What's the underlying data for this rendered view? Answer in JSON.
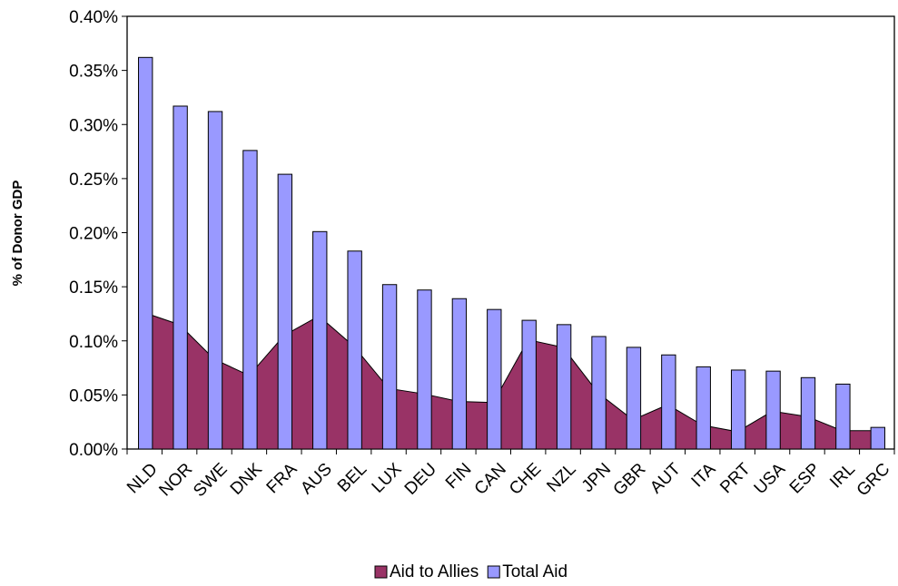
{
  "chart_data": {
    "type": "bar-area",
    "y_label": "% of Donor GDP",
    "categories": [
      "NLD",
      "NOR",
      "SWE",
      "DNK",
      "FRA",
      "AUS",
      "BEL",
      "LUX",
      "DEU",
      "FIN",
      "CAN",
      "CHE",
      "NZL",
      "JPN",
      "GBR",
      "AUT",
      "ITA",
      "PRT",
      "USA",
      "ESP",
      "IRL",
      "GRC"
    ],
    "series": [
      {
        "name": "Aid to Allies",
        "kind": "area",
        "color": "#993366",
        "values": [
          0.126,
          0.115,
          0.083,
          0.068,
          0.105,
          0.123,
          0.095,
          0.056,
          0.051,
          0.044,
          0.043,
          0.101,
          0.094,
          0.052,
          0.027,
          0.041,
          0.022,
          0.016,
          0.035,
          0.03,
          0.017,
          0.017
        ]
      },
      {
        "name": "Total Aid",
        "kind": "bar",
        "color": "#9999ff",
        "values": [
          0.362,
          0.317,
          0.312,
          0.276,
          0.254,
          0.201,
          0.183,
          0.152,
          0.147,
          0.139,
          0.129,
          0.119,
          0.115,
          0.104,
          0.094,
          0.087,
          0.076,
          0.073,
          0.072,
          0.066,
          0.06,
          0.02
        ]
      }
    ],
    "ylim": [
      0,
      0.4
    ],
    "yticks": [
      {
        "value": 0,
        "label": "0.00%"
      },
      {
        "value": 0.05,
        "label": "0.05%"
      },
      {
        "value": 0.1,
        "label": "0.10%"
      },
      {
        "value": 0.15,
        "label": "0.15%"
      },
      {
        "value": 0.2,
        "label": "0.20%"
      },
      {
        "value": 0.25,
        "label": "0.25%"
      },
      {
        "value": 0.3,
        "label": "0.30%"
      },
      {
        "value": 0.35,
        "label": "0.35%"
      },
      {
        "value": 0.4,
        "label": "0.40%"
      }
    ],
    "legend": "bottom"
  }
}
